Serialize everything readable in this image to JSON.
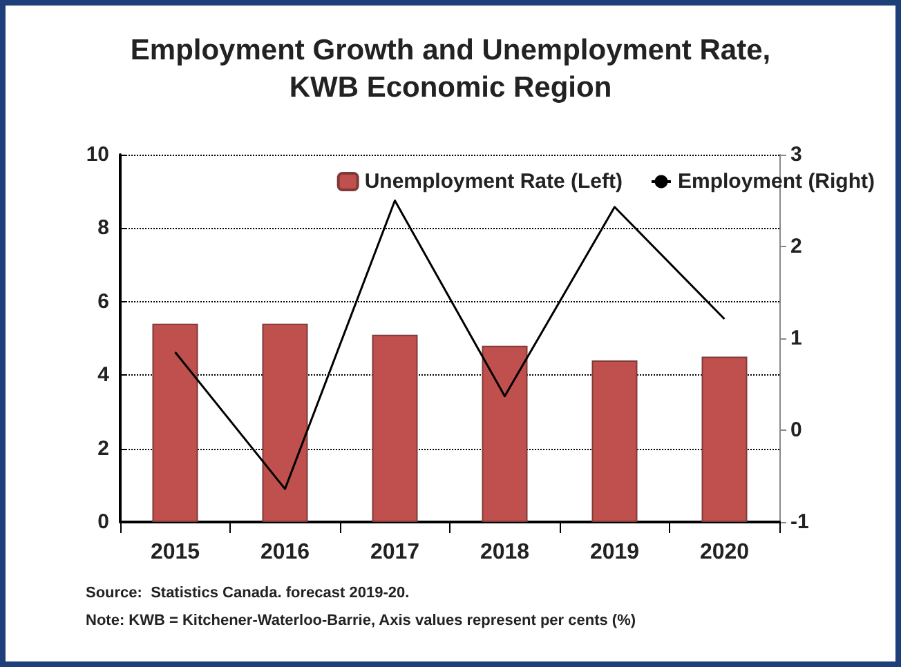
{
  "chart_data": {
    "type": "bar",
    "title": "Employment Growth and Unemployment Rate,\nKWB Economic Region",
    "categories": [
      "2015",
      "2016",
      "2017",
      "2018",
      "2019",
      "2020"
    ],
    "series": [
      {
        "name": "Unemployment Rate (Left)",
        "color": "#c0504d",
        "values": [
          5.4,
          5.4,
          5.1,
          4.8,
          4.4,
          4.5
        ]
      },
      {
        "name": "Employment (Right)",
        "type": "line",
        "axis": "y2",
        "color": "#000000",
        "values": [
          0.85,
          -0.64,
          2.5,
          0.37,
          2.43,
          1.21
        ]
      }
    ],
    "ylim": [
      0,
      10
    ],
    "yticks": [
      0,
      2,
      4,
      6,
      8,
      10
    ],
    "y2lim": [
      -1,
      3
    ],
    "y2ticks": [
      -1,
      0,
      1,
      2,
      3
    ],
    "grid": "y",
    "legend": "top right",
    "marker": "none",
    "annotations": [
      "Source:  Statistics Canada. forecast 2019-20.",
      "Note: KWB = Kitchener-Waterloo-Barrie, Axis values represent per cents (%)"
    ]
  }
}
